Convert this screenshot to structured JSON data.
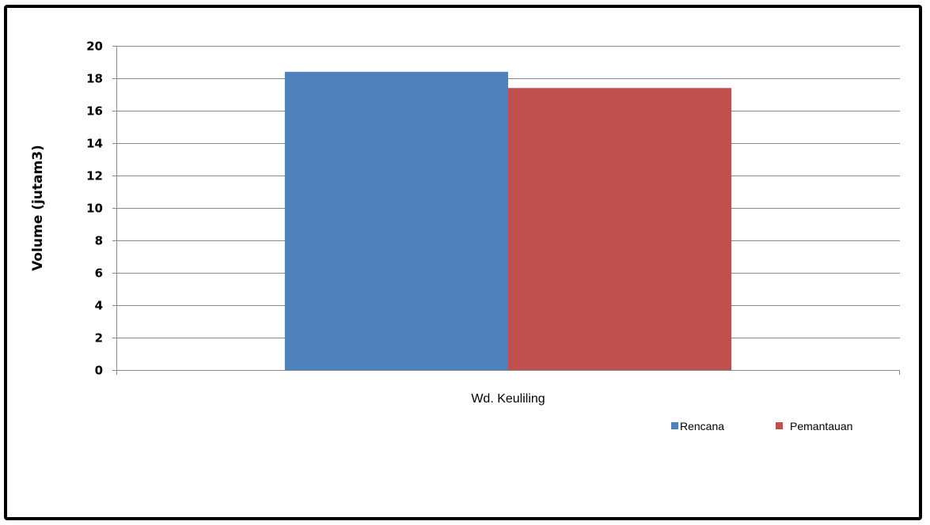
{
  "chart_data": {
    "type": "bar",
    "categories": [
      "Wd. Keuliling"
    ],
    "series": [
      {
        "name": "Rencana",
        "values": [
          18.4
        ],
        "color": "#4F81BD"
      },
      {
        "name": "Pemantauan",
        "values": [
          17.4
        ],
        "color": "#C0504D"
      }
    ],
    "xlabel": "",
    "ylabel": "Volume (jutam3)",
    "ylim": [
      0,
      20
    ],
    "yticks": [
      "0",
      "2",
      "4",
      "6",
      "8",
      "10",
      "12",
      "14",
      "16",
      "18",
      "20"
    ],
    "grid": true,
    "legend_position": "bottom-right"
  },
  "colors": {
    "gridline": "#888888",
    "axis": "#888888",
    "frame": "#000000"
  }
}
